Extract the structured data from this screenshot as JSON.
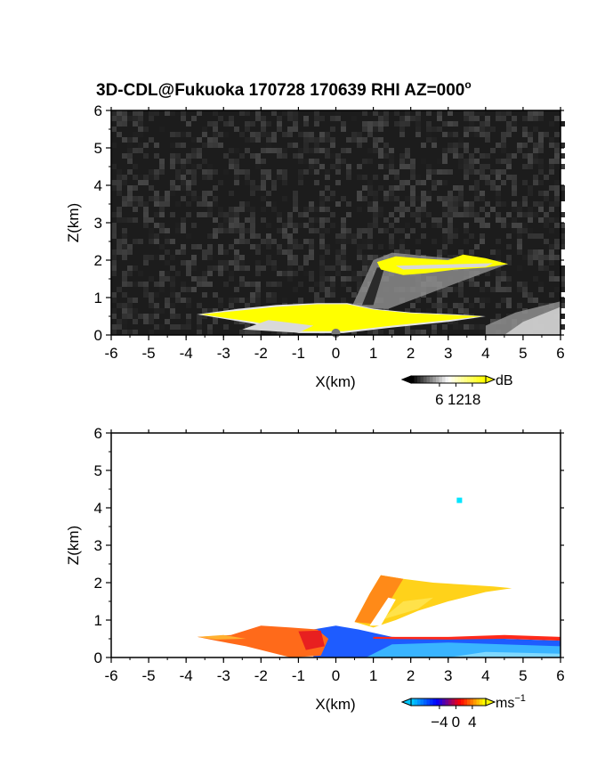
{
  "title_prefix": "3D-CDL@Fukuoka 170728 170639 RHI AZ=000",
  "title_suffix": "o",
  "chart_data": [
    {
      "type": "heatmap",
      "name": "reflectivity",
      "xlabel": "X(km)",
      "ylabel": "Z(km)",
      "xlim": [
        -6,
        6
      ],
      "ylim": [
        0,
        6
      ],
      "xticks": [
        "-6",
        "-5",
        "-4",
        "-3",
        "-2",
        "-1",
        "0",
        "1",
        "2",
        "3",
        "4",
        "5",
        "6"
      ],
      "yticks": [
        "0",
        "1",
        "2",
        "3",
        "4",
        "5",
        "6"
      ],
      "background": "noise",
      "colorbar": {
        "unit": "dB",
        "ticks": [
          "6",
          "12",
          "18"
        ],
        "colors": [
          "#000000",
          "#ffffff",
          "#ffff00"
        ]
      },
      "features": [
        {
          "label": "near-surface echo",
          "x": [
            -3.7,
            4.0
          ],
          "z": [
            0.0,
            0.7
          ],
          "level_db": 18
        },
        {
          "label": "elevated plume",
          "x": [
            1.0,
            4.6
          ],
          "z": [
            1.5,
            2.1
          ],
          "level_db": 18
        },
        {
          "label": "clear-air return",
          "x": [
            4.0,
            6.0
          ],
          "z": [
            0.0,
            0.9
          ],
          "level_db": 10
        }
      ]
    },
    {
      "type": "heatmap",
      "name": "doppler velocity",
      "xlabel": "X(km)",
      "ylabel": "Z(km)",
      "xlim": [
        -6,
        6
      ],
      "ylim": [
        0,
        6
      ],
      "xticks": [
        "-6",
        "-5",
        "-4",
        "-3",
        "-2",
        "-1",
        "0",
        "1",
        "2",
        "3",
        "4",
        "5",
        "6"
      ],
      "yticks": [
        "0",
        "1",
        "2",
        "3",
        "4",
        "5",
        "6"
      ],
      "colorbar": {
        "unit": "ms",
        "unit_sup": "−1",
        "ticks": [
          "−4",
          "0",
          "4"
        ],
        "colors": [
          "#00c8ff",
          "#0000ff",
          "#ff0000",
          "#ffff00"
        ]
      },
      "features": [
        {
          "label": "outflow layer",
          "x": [
            -3.7,
            -0.3
          ],
          "z": [
            0.0,
            0.8
          ],
          "velocity": 3
        },
        {
          "label": "inflow core",
          "x": [
            -0.5,
            6.0
          ],
          "z": [
            0.0,
            0.6
          ],
          "velocity": -3
        },
        {
          "label": "elevated plume",
          "x": [
            0.5,
            4.7
          ],
          "z": [
            0.9,
            2.2
          ],
          "velocity": 4
        },
        {
          "label": "isolated pixel",
          "x": [
            3.3,
            3.3
          ],
          "z": [
            4.2,
            4.2
          ],
          "velocity": -4
        }
      ]
    }
  ]
}
